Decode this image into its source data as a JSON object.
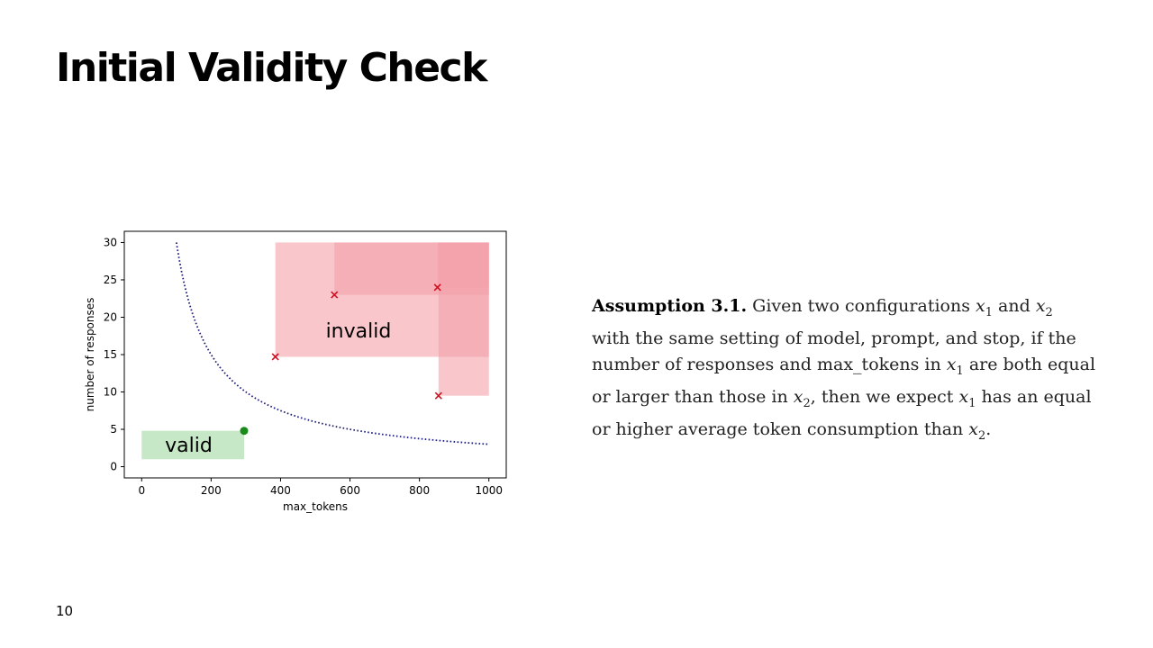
{
  "slide": {
    "title": "Initial Validity Check",
    "page_number": "10"
  },
  "assumption": {
    "heading": "Assumption 3.1.",
    "parts": [
      " Given two configurations ",
      "x",
      "1",
      " and ",
      "x",
      "2",
      " with the same setting of model, prompt, and stop, if the number of responses and max_tokens in ",
      "x",
      "1",
      " are both equal or larger than those in ",
      "x",
      "2",
      ", then we expect ",
      "x",
      "1",
      " has an equal or higher average token consumption than ",
      "x",
      "2",
      "."
    ]
  },
  "chart_data": {
    "type": "scatter",
    "xlabel": "max_tokens",
    "ylabel": "number of responses",
    "xlim": [
      -50,
      1050
    ],
    "ylim": [
      -1.5,
      31.5
    ],
    "xticks": [
      0,
      200,
      400,
      600,
      800,
      1000
    ],
    "yticks": [
      0,
      5,
      10,
      15,
      20,
      25,
      30
    ],
    "grid": false,
    "curve": {
      "style": "dotted",
      "color": "#1f1f7a",
      "formula": "y = 3000 / x",
      "x_range": [
        100,
        1000
      ]
    },
    "valid_region": {
      "label": "valid",
      "x_range": [
        0,
        295
      ],
      "y_range": [
        1,
        4.8
      ],
      "color": "#c6e8c6"
    },
    "valid_point": {
      "x": 295,
      "y": 4.8,
      "color": "#1a8a1a"
    },
    "invalid_label": "invalid",
    "invalid_points": [
      {
        "x": 385,
        "y": 14.7
      },
      {
        "x": 555,
        "y": 23
      },
      {
        "x": 852,
        "y": 24
      },
      {
        "x": 855,
        "y": 9.5
      }
    ],
    "invalid_color": "#f3a0a8",
    "marker_color": "#cc1122"
  }
}
